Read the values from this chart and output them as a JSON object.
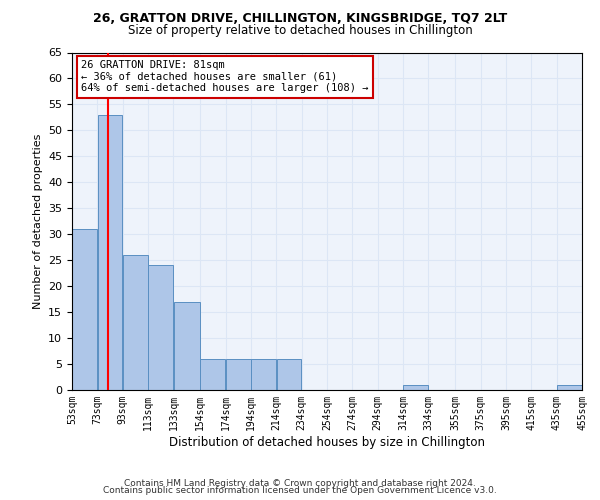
{
  "title1": "26, GRATTON DRIVE, CHILLINGTON, KINGSBRIDGE, TQ7 2LT",
  "title2": "Size of property relative to detached houses in Chillington",
  "xlabel": "Distribution of detached houses by size in Chillington",
  "ylabel": "Number of detached properties",
  "bin_labels": [
    "53sqm",
    "73sqm",
    "93sqm",
    "113sqm",
    "133sqm",
    "154sqm",
    "174sqm",
    "194sqm",
    "214sqm",
    "234sqm",
    "254sqm",
    "274sqm",
    "294sqm",
    "314sqm",
    "334sqm",
    "355sqm",
    "375sqm",
    "395sqm",
    "415sqm",
    "435sqm",
    "455sqm"
  ],
  "bin_edges": [
    53,
    73,
    93,
    113,
    133,
    154,
    174,
    194,
    214,
    234,
    254,
    274,
    294,
    314,
    334,
    355,
    375,
    395,
    415,
    435,
    455
  ],
  "bar_values": [
    31,
    53,
    26,
    24,
    17,
    6,
    6,
    6,
    6,
    0,
    0,
    0,
    0,
    1,
    0,
    0,
    0,
    0,
    0,
    1,
    0
  ],
  "bar_color": "#aec6e8",
  "bar_edge_color": "#5a8fc2",
  "grid_color": "#dce6f5",
  "background_color": "#eef3fb",
  "red_line_x": 81,
  "ylim": [
    0,
    65
  ],
  "yticks": [
    0,
    5,
    10,
    15,
    20,
    25,
    30,
    35,
    40,
    45,
    50,
    55,
    60,
    65
  ],
  "annotation_title": "26 GRATTON DRIVE: 81sqm",
  "annotation_line1": "← 36% of detached houses are smaller (61)",
  "annotation_line2": "64% of semi-detached houses are larger (108) →",
  "annotation_box_color": "#ffffff",
  "annotation_border_color": "#cc0000",
  "footer1": "Contains HM Land Registry data © Crown copyright and database right 2024.",
  "footer2": "Contains public sector information licensed under the Open Government Licence v3.0."
}
